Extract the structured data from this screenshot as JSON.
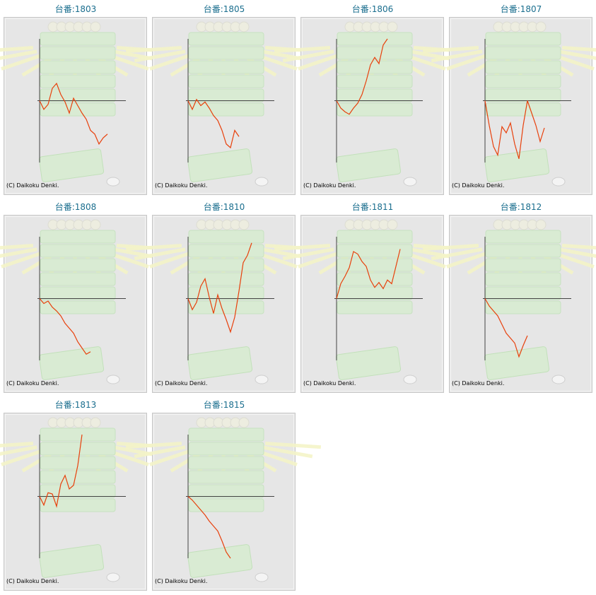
{
  "chart_data": [
    {
      "type": "line",
      "title": "台番:1803",
      "annotation": "(C) Daikoku Denki.",
      "color": "#e8400c",
      "ylim": [
        -5000,
        5000
      ],
      "values": [
        0,
        -700,
        -300,
        1000,
        1400,
        500,
        -100,
        -1000,
        200,
        -400,
        -1000,
        -1500,
        -2400,
        -2700,
        -3500,
        -3000,
        -2700
      ]
    },
    {
      "type": "line",
      "title": "台番:1805",
      "annotation": "(C) Daikoku Denki.",
      "color": "#e8400c",
      "ylim": [
        -5000,
        5000
      ],
      "values": [
        0,
        -700,
        100,
        -400,
        -100,
        -600,
        -1200,
        -1600,
        -2400,
        -3500,
        -3800,
        -2400,
        -2900
      ]
    },
    {
      "type": "line",
      "title": "台番:1806",
      "annotation": "(C) Daikoku Denki.",
      "color": "#e8400c",
      "ylim": [
        -5000,
        5000
      ],
      "values": [
        0,
        -600,
        -900,
        -1100,
        -600,
        -200,
        500,
        1600,
        2900,
        3500,
        3000,
        4500,
        5000
      ]
    },
    {
      "type": "line",
      "title": "台番:1807",
      "annotation": "(C) Daikoku Denki.",
      "color": "#e8400c",
      "ylim": [
        -5000,
        5000
      ],
      "values": [
        0,
        -2000,
        -3700,
        -4400,
        -2100,
        -2600,
        -1800,
        -3500,
        -4700,
        -2000,
        0,
        -1000,
        -2000,
        -3300,
        -2200
      ]
    },
    {
      "type": "line",
      "title": "台番:1808",
      "annotation": "(C) Daikoku Denki.",
      "color": "#e8400c",
      "ylim": [
        -5000,
        5000
      ],
      "values": [
        0,
        -400,
        -200,
        -700,
        -1000,
        -1400,
        -2000,
        -2400,
        -2800,
        -3500,
        -4000,
        -4500,
        -4300
      ]
    },
    {
      "type": "line",
      "title": "台番:1810",
      "annotation": "(C) Daikoku Denki.",
      "color": "#e8400c",
      "ylim": [
        -5000,
        5000
      ],
      "values": [
        0,
        -900,
        -300,
        1000,
        1600,
        100,
        -1200,
        300,
        -800,
        -1700,
        -2700,
        -1500,
        600,
        2900,
        3500,
        4500
      ]
    },
    {
      "type": "line",
      "title": "台番:1811",
      "annotation": "(C) Daikoku Denki.",
      "color": "#e8400c",
      "ylim": [
        -5000,
        5000
      ],
      "values": [
        0,
        1200,
        1800,
        2500,
        3800,
        3600,
        3000,
        2600,
        1500,
        900,
        1300,
        800,
        1500,
        1200,
        2600,
        4000
      ]
    },
    {
      "type": "line",
      "title": "台番:1812",
      "annotation": "(C) Daikoku Denki.",
      "color": "#e8400c",
      "ylim": [
        -5000,
        5000
      ],
      "values": [
        0,
        -600,
        -1000,
        -1400,
        -2100,
        -2800,
        -3200,
        -3600,
        -4700,
        -3800,
        -3000
      ]
    },
    {
      "type": "line",
      "title": "台番:1813",
      "annotation": "(C) Daikoku Denki.",
      "color": "#e8400c",
      "ylim": [
        -5000,
        5000
      ],
      "values": [
        0,
        -700,
        300,
        200,
        -800,
        1000,
        1700,
        600,
        900,
        2500,
        5000
      ]
    },
    {
      "type": "line",
      "title": "台番:1815",
      "annotation": "(C) Daikoku Denki.",
      "color": "#e8400c",
      "ylim": [
        -5000,
        5000
      ],
      "values": [
        0,
        -300,
        -700,
        -1100,
        -1500,
        -2000,
        -2400,
        -2800,
        -3600,
        -4500,
        -5000
      ]
    }
  ]
}
